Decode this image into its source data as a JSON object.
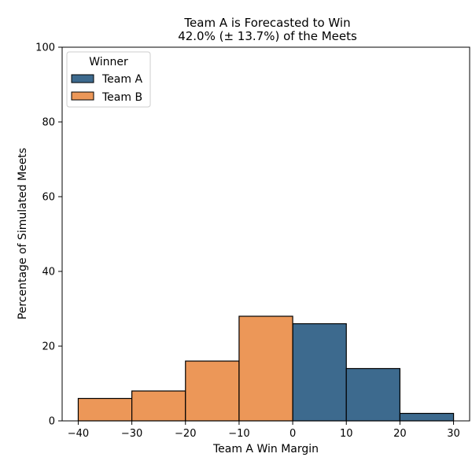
{
  "chart_data": {
    "type": "bar",
    "title_lines": [
      "Team A is Forecasted to Win",
      "42.0% (± 13.7%) of the Meets"
    ],
    "xlabel": "Team A Win Margin",
    "ylabel": "Percentage of Simulated Meets",
    "xlim": [
      -43,
      33
    ],
    "ylim": [
      0,
      100
    ],
    "xticks": [
      -40,
      -30,
      -20,
      -10,
      0,
      10,
      20,
      30
    ],
    "xtick_labels": [
      "−40",
      "−30",
      "−20",
      "−10",
      "0",
      "10",
      "20",
      "30"
    ],
    "yticks": [
      0,
      20,
      40,
      60,
      80,
      100
    ],
    "ytick_labels": [
      "0",
      "20",
      "40",
      "60",
      "80",
      "100"
    ],
    "legend": {
      "title": "Winner",
      "placement": "top-left",
      "entries": [
        {
          "label": "Team A",
          "color": "#3d6a8e"
        },
        {
          "label": "Team B",
          "color": "#ec9758"
        }
      ]
    },
    "series": [
      {
        "name": "Team A",
        "color": "#3d6a8e",
        "bins": [
          {
            "x0": 0,
            "x1": 10,
            "value": 26
          },
          {
            "x0": 10,
            "x1": 20,
            "value": 14
          },
          {
            "x0": 20,
            "x1": 30,
            "value": 2
          }
        ]
      },
      {
        "name": "Team B",
        "color": "#ec9758",
        "bins": [
          {
            "x0": -40,
            "x1": -30,
            "value": 6
          },
          {
            "x0": -30,
            "x1": -20,
            "value": 8
          },
          {
            "x0": -20,
            "x1": -10,
            "value": 16
          },
          {
            "x0": -10,
            "x1": 0,
            "value": 28
          }
        ]
      }
    ]
  }
}
